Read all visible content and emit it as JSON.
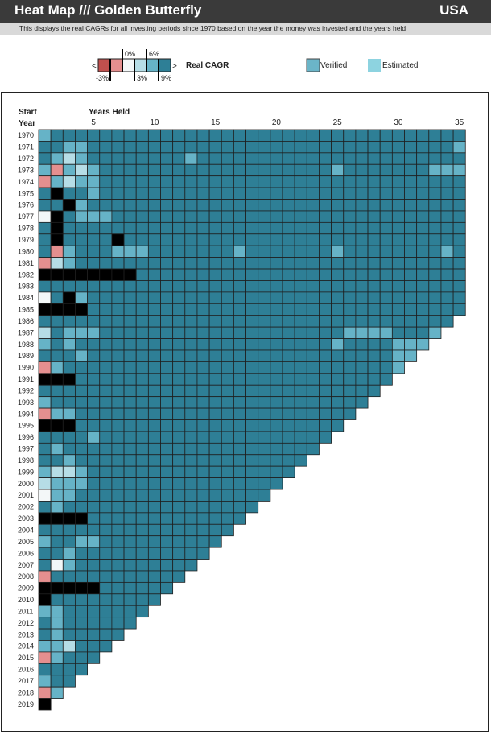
{
  "header": {
    "title": "Heat Map /// Golden Butterfly",
    "country": "USA"
  },
  "subtitle": "This displays the real CAGRs for all investing periods since 1970 based on the year the money was invested and the years held",
  "legend": {
    "scale_label": "Real CAGR",
    "less_marker": "<",
    "more_marker": ">",
    "top_ticks": [
      "0%",
      "6%"
    ],
    "bottom_ticks": [
      "-3%",
      "3%",
      "9%"
    ],
    "verified_label": "Verified",
    "estimated_label": "Estimated",
    "verified_color": "#6bb5c8",
    "estimated_color": "#8dd3e0"
  },
  "colors": {
    "lt_-3": "#c0504d",
    "-3_0": "#e48f8f",
    "0_3": "#f3f7f8",
    "3_6": "#b6dde6",
    "6_9": "#66b3c7",
    "gt_9": "#2e7f96"
  },
  "chart_data": {
    "type": "heatmap",
    "x_title": "Years Held",
    "y_title_line1": "Start",
    "y_title_line2": "Year",
    "x_tick_labels": [
      "5",
      "10",
      "15",
      "20",
      "25",
      "30",
      "35"
    ],
    "x_tick_values": [
      5,
      10,
      15,
      20,
      25,
      30,
      35
    ],
    "start_years": [
      1970,
      1971,
      1972,
      1973,
      1974,
      1975,
      1976,
      1977,
      1978,
      1979,
      1980,
      1981,
      1982,
      1983,
      1984,
      1985,
      1986,
      1987,
      1988,
      1989,
      1990,
      1991,
      1992,
      1993,
      1994,
      1995,
      1996,
      1997,
      1998,
      1999,
      2000,
      2001,
      2002,
      2003,
      2004,
      2005,
      2006,
      2007,
      2008,
      2009,
      2010,
      2011,
      2012,
      2013,
      2014,
      2015,
      2016,
      2017,
      2018,
      2019
    ],
    "last_data_year": 2019,
    "max_years_held": 35,
    "bins": [
      "<-3%",
      "-3% to 0%",
      "0% to 3%",
      "3% to 6%",
      "6% to 9%",
      ">9%"
    ],
    "row_bins": [
      "45555555555555555555555555555555555",
      "55445555555555555555555555555555554",
      "54345555555545555555555555555555555",
      "41434555555555555555555545555555444",
      "14344555555555555555555555555555555",
      "56554555555555555555555555555555555",
      "55645555555555555555555555555555555",
      "26544455555555555555555555555555555",
      "56555555555555555555555555555555555",
      "56555565555555555555555555555555555",
      "51455544455555554555555545555555545",
      "13455555555555555555555555555555555",
      "66666666555555555555555555555555555",
      "55555555555555555555555555555555555",
      "25645555555555555555555555555555555",
      "66665555555555555555555555555555555",
      "55555555555555555555555555555555555",
      "35444555555555555555555554444555",
      "45455555555555555555555545555",
      "55545555555555555555555555555",
      "14555555555555555555555555555",
      "66655555555555555555555555555",
      "55555555555555555555555555555",
      "45555555555555555555555555555",
      "14455555555555555555555555555",
      "66655555555555555555555555555",
      "55554555555555555555555555555",
      "54555555555555555555555555555",
      "55455555555555555555555555555",
      "43345555555555555555555555555",
      "34445555555555555555555555555",
      "24455555555555555555555555555",
      "54555555555555555555555555555",
      "66665555555555555555555555555",
      "55555555555555555555555555555",
      "45544555555555555555555555555",
      "55455555555555555555555555555",
      "52455555555555555555555555555",
      "15555555555555555555555555555",
      "66666555555555555555555555555",
      "65555555555555555555555555555",
      "44555555555555555555555555555",
      "54555555555555555555555555555",
      "54555555555555555555555555555",
      "44355555555555555555555555555",
      "14555555555555555555555555555",
      "55555555555555555555555555555",
      "45555555555555555555555555555",
      "14555555555555555555555555555",
      "65555555555555555555555555555"
    ]
  }
}
